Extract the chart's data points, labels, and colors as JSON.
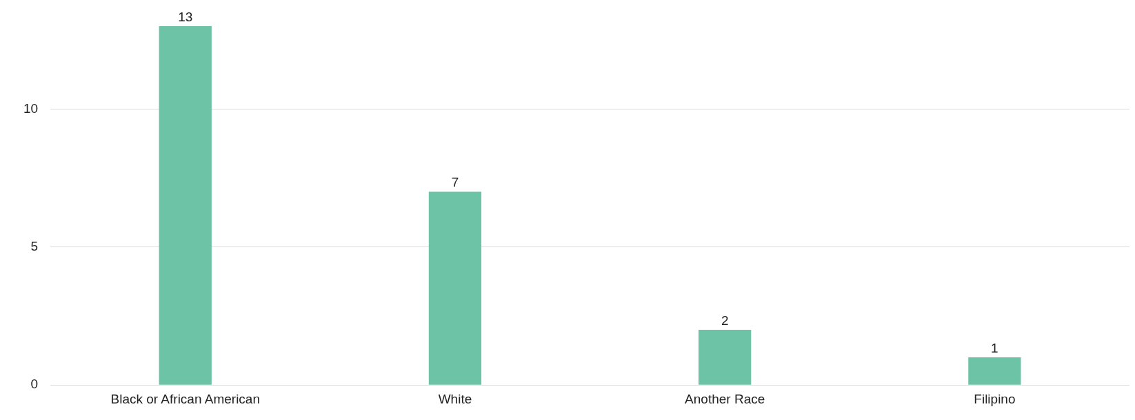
{
  "chart_data": {
    "type": "bar",
    "categories": [
      "Black or African American",
      "White",
      "Another Race",
      "Filipino"
    ],
    "values": [
      13,
      7,
      2,
      1
    ],
    "color": "#6cc3a6",
    "ylim": [
      0,
      13
    ],
    "yticks": [
      0,
      5,
      10
    ],
    "grid": "y",
    "data_labels": true,
    "legend": false
  }
}
